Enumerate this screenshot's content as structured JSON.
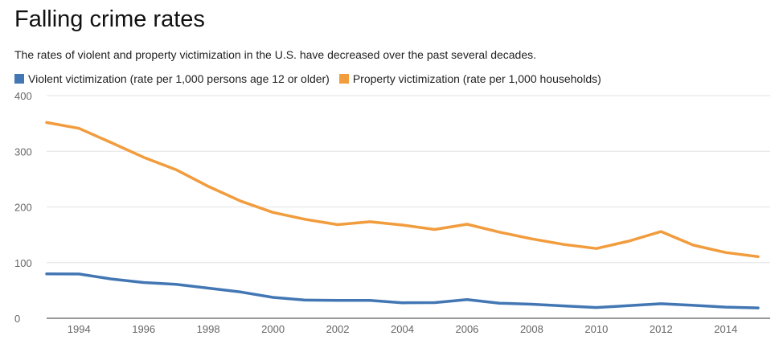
{
  "chart_data": {
    "type": "line",
    "title": "Falling crime rates",
    "subtitle": "The rates of violent and property victimization in the U.S. have decreased over the past several decades.",
    "x": [
      1993,
      1994,
      1995,
      1996,
      1997,
      1998,
      1999,
      2000,
      2001,
      2002,
      2003,
      2004,
      2005,
      2006,
      2007,
      2008,
      2009,
      2010,
      2011,
      2012,
      2013,
      2014,
      2015
    ],
    "series": [
      {
        "name": "Violent victimization (rate per 1,000 persons age 12 or older)",
        "color": "#4277b4",
        "values": [
          79.8,
          79.6,
          70.6,
          64.2,
          61.1,
          54.1,
          47.2,
          37.5,
          32.6,
          32.1,
          32.1,
          27.8,
          28.2,
          33.6,
          27.2,
          25.3,
          22.3,
          19.3,
          22.6,
          26.1,
          23.2,
          20.1,
          18.6
        ]
      },
      {
        "name": "Property victimization (rate per 1,000 households)",
        "color": "#f19c3d",
        "values": [
          351.8,
          341.2,
          315.5,
          289.3,
          267.0,
          237.0,
          210.5,
          190.2,
          177.7,
          168.2,
          173.4,
          167.5,
          159.5,
          169.0,
          154.8,
          142.6,
          132.6,
          125.4,
          138.7,
          155.8,
          131.4,
          118.1,
          110.7
        ]
      }
    ],
    "y_ticks": [
      "400",
      "300",
      "200",
      "100",
      "0"
    ],
    "x_ticks": [
      "1994",
      "1996",
      "1998",
      "2000",
      "2002",
      "2004",
      "2006",
      "2008",
      "2010",
      "2012",
      "2014"
    ],
    "ylim": [
      0,
      400
    ],
    "xlim": [
      1993,
      2015
    ],
    "grid": true,
    "legend_position": "top-left"
  }
}
